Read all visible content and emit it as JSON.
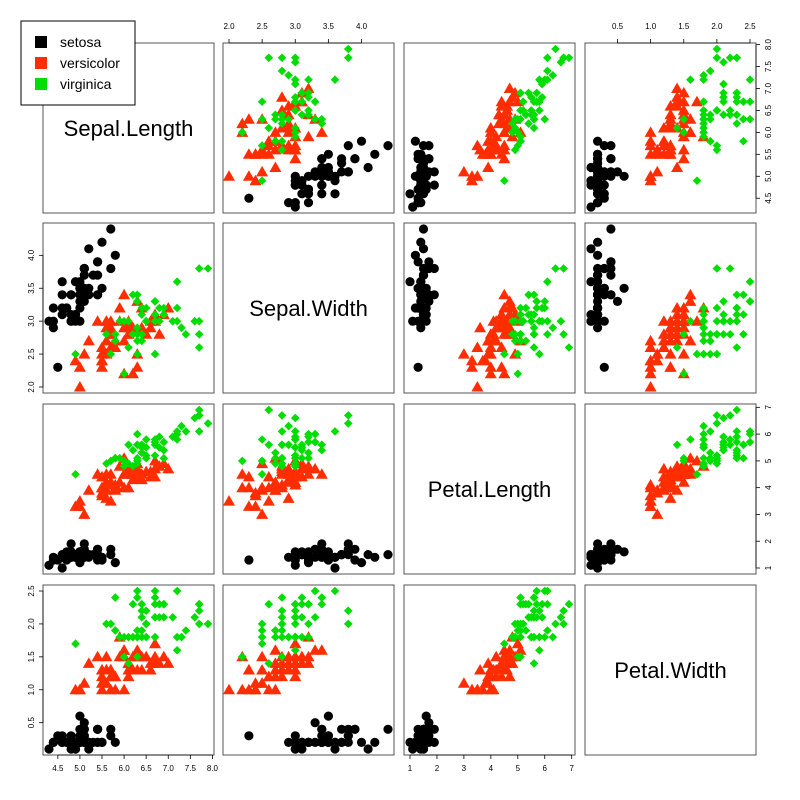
{
  "chart_data": {
    "type": "scatter",
    "variables": [
      "Sepal.Length",
      "Sepal.Width",
      "Petal.Length",
      "Petal.Width"
    ],
    "ranges": [
      [
        4.3,
        7.9
      ],
      [
        2.0,
        4.4
      ],
      [
        1.0,
        6.9
      ],
      [
        0.1,
        2.5
      ]
    ],
    "ticks": [
      [
        "4.5",
        "5.0",
        "5.5",
        "6.0",
        "6.5",
        "7.0",
        "7.5",
        "8.0"
      ],
      [
        "2.0",
        "2.5",
        "3.0",
        "3.5",
        "4.0"
      ],
      [
        "1",
        "2",
        "3",
        "4",
        "5",
        "6",
        "7"
      ],
      [
        "0.5",
        "1.0",
        "1.5",
        "2.0",
        "2.5"
      ]
    ],
    "legend": {
      "position": "top-left",
      "entries": [
        {
          "name": "setosa",
          "color": "#000000"
        },
        {
          "name": "versicolor",
          "color": "#ff2d00"
        },
        {
          "name": "virginica",
          "color": "#00dd00"
        }
      ]
    },
    "grid": false,
    "series": [
      {
        "name": "setosa",
        "color": "#000000",
        "marker": "circle",
        "points": [
          [
            5.1,
            3.5,
            1.4,
            0.2
          ],
          [
            4.9,
            3.0,
            1.4,
            0.2
          ],
          [
            4.7,
            3.2,
            1.3,
            0.2
          ],
          [
            4.6,
            3.1,
            1.5,
            0.2
          ],
          [
            5.0,
            3.6,
            1.4,
            0.2
          ],
          [
            5.4,
            3.9,
            1.7,
            0.4
          ],
          [
            4.6,
            3.4,
            1.4,
            0.3
          ],
          [
            5.0,
            3.4,
            1.5,
            0.2
          ],
          [
            4.4,
            2.9,
            1.4,
            0.2
          ],
          [
            4.9,
            3.1,
            1.5,
            0.1
          ],
          [
            5.4,
            3.7,
            1.5,
            0.2
          ],
          [
            4.8,
            3.4,
            1.6,
            0.2
          ],
          [
            4.8,
            3.0,
            1.4,
            0.1
          ],
          [
            4.3,
            3.0,
            1.1,
            0.1
          ],
          [
            5.8,
            4.0,
            1.2,
            0.2
          ],
          [
            5.7,
            4.4,
            1.5,
            0.4
          ],
          [
            5.4,
            3.9,
            1.3,
            0.4
          ],
          [
            5.1,
            3.5,
            1.4,
            0.3
          ],
          [
            5.7,
            3.8,
            1.7,
            0.3
          ],
          [
            5.1,
            3.8,
            1.5,
            0.3
          ],
          [
            5.4,
            3.4,
            1.7,
            0.2
          ],
          [
            5.1,
            3.7,
            1.5,
            0.4
          ],
          [
            4.6,
            3.6,
            1.0,
            0.2
          ],
          [
            5.1,
            3.3,
            1.7,
            0.5
          ],
          [
            4.8,
            3.4,
            1.9,
            0.2
          ],
          [
            5.0,
            3.0,
            1.6,
            0.2
          ],
          [
            5.0,
            3.4,
            1.6,
            0.4
          ],
          [
            5.2,
            3.5,
            1.5,
            0.2
          ],
          [
            5.2,
            3.4,
            1.4,
            0.2
          ],
          [
            4.7,
            3.2,
            1.6,
            0.2
          ],
          [
            4.8,
            3.1,
            1.6,
            0.2
          ],
          [
            5.4,
            3.4,
            1.5,
            0.4
          ],
          [
            5.2,
            4.1,
            1.5,
            0.1
          ],
          [
            5.5,
            4.2,
            1.4,
            0.2
          ],
          [
            4.9,
            3.1,
            1.5,
            0.2
          ],
          [
            5.0,
            3.2,
            1.2,
            0.2
          ],
          [
            5.5,
            3.5,
            1.3,
            0.2
          ],
          [
            4.9,
            3.6,
            1.4,
            0.1
          ],
          [
            4.4,
            3.0,
            1.3,
            0.2
          ],
          [
            5.1,
            3.4,
            1.5,
            0.2
          ],
          [
            5.0,
            3.5,
            1.3,
            0.3
          ],
          [
            4.5,
            2.3,
            1.3,
            0.3
          ],
          [
            4.4,
            3.2,
            1.3,
            0.2
          ],
          [
            5.0,
            3.5,
            1.6,
            0.6
          ],
          [
            5.1,
            3.8,
            1.9,
            0.4
          ],
          [
            4.8,
            3.0,
            1.4,
            0.3
          ],
          [
            5.1,
            3.8,
            1.6,
            0.2
          ],
          [
            4.6,
            3.2,
            1.4,
            0.2
          ],
          [
            5.3,
            3.7,
            1.5,
            0.2
          ],
          [
            5.0,
            3.3,
            1.4,
            0.2
          ]
        ]
      },
      {
        "name": "versicolor",
        "color": "#ff2d00",
        "marker": "triangle",
        "points": [
          [
            7.0,
            3.2,
            4.7,
            1.4
          ],
          [
            6.4,
            3.2,
            4.5,
            1.5
          ],
          [
            6.9,
            3.1,
            4.9,
            1.5
          ],
          [
            5.5,
            2.3,
            4.0,
            1.3
          ],
          [
            6.5,
            2.8,
            4.6,
            1.5
          ],
          [
            5.7,
            2.8,
            4.5,
            1.3
          ],
          [
            6.3,
            3.3,
            4.7,
            1.6
          ],
          [
            4.9,
            2.4,
            3.3,
            1.0
          ],
          [
            6.6,
            2.9,
            4.6,
            1.3
          ],
          [
            5.2,
            2.7,
            3.9,
            1.4
          ],
          [
            5.0,
            2.0,
            3.5,
            1.0
          ],
          [
            5.9,
            3.0,
            4.2,
            1.5
          ],
          [
            6.0,
            2.2,
            4.0,
            1.0
          ],
          [
            6.1,
            2.9,
            4.7,
            1.4
          ],
          [
            5.6,
            2.9,
            3.6,
            1.3
          ],
          [
            6.7,
            3.1,
            4.4,
            1.4
          ],
          [
            5.6,
            3.0,
            4.5,
            1.5
          ],
          [
            5.8,
            2.7,
            4.1,
            1.0
          ],
          [
            6.2,
            2.2,
            4.5,
            1.5
          ],
          [
            5.6,
            2.5,
            3.9,
            1.1
          ],
          [
            5.9,
            3.2,
            4.8,
            1.8
          ],
          [
            6.1,
            2.8,
            4.0,
            1.3
          ],
          [
            6.3,
            2.5,
            4.9,
            1.5
          ],
          [
            6.1,
            2.8,
            4.7,
            1.2
          ],
          [
            6.4,
            2.9,
            4.3,
            1.3
          ],
          [
            6.6,
            3.0,
            4.4,
            1.4
          ],
          [
            6.8,
            2.8,
            4.8,
            1.4
          ],
          [
            6.7,
            3.0,
            5.0,
            1.7
          ],
          [
            6.0,
            2.9,
            4.5,
            1.5
          ],
          [
            5.7,
            2.6,
            3.5,
            1.0
          ],
          [
            5.5,
            2.4,
            3.8,
            1.1
          ],
          [
            5.5,
            2.4,
            3.7,
            1.0
          ],
          [
            5.8,
            2.7,
            3.9,
            1.2
          ],
          [
            6.0,
            2.7,
            5.1,
            1.6
          ],
          [
            5.4,
            3.0,
            4.5,
            1.5
          ],
          [
            6.0,
            3.4,
            4.5,
            1.6
          ],
          [
            6.7,
            3.1,
            4.7,
            1.5
          ],
          [
            6.3,
            2.3,
            4.4,
            1.3
          ],
          [
            5.6,
            3.0,
            4.1,
            1.3
          ],
          [
            5.5,
            2.5,
            4.0,
            1.3
          ],
          [
            5.5,
            2.6,
            4.4,
            1.2
          ],
          [
            6.1,
            3.0,
            4.6,
            1.4
          ],
          [
            5.8,
            2.6,
            4.0,
            1.2
          ],
          [
            5.0,
            2.3,
            3.3,
            1.0
          ],
          [
            5.6,
            2.7,
            4.2,
            1.3
          ],
          [
            5.7,
            3.0,
            4.2,
            1.2
          ],
          [
            5.7,
            2.9,
            4.2,
            1.3
          ],
          [
            6.2,
            2.9,
            4.3,
            1.3
          ],
          [
            5.1,
            2.5,
            3.0,
            1.1
          ],
          [
            5.7,
            2.8,
            4.1,
            1.3
          ]
        ]
      },
      {
        "name": "virginica",
        "color": "#00dd00",
        "marker": "diamond",
        "points": [
          [
            6.3,
            3.3,
            6.0,
            2.5
          ],
          [
            5.8,
            2.7,
            5.1,
            1.9
          ],
          [
            7.1,
            3.0,
            5.9,
            2.1
          ],
          [
            6.3,
            2.9,
            5.6,
            1.8
          ],
          [
            6.5,
            3.0,
            5.8,
            2.2
          ],
          [
            7.6,
            3.0,
            6.6,
            2.1
          ],
          [
            4.9,
            2.5,
            4.5,
            1.7
          ],
          [
            7.3,
            2.9,
            6.3,
            1.8
          ],
          [
            6.7,
            2.5,
            5.8,
            1.8
          ],
          [
            7.2,
            3.6,
            6.1,
            2.5
          ],
          [
            6.5,
            3.2,
            5.1,
            2.0
          ],
          [
            6.4,
            2.7,
            5.3,
            1.9
          ],
          [
            6.8,
            3.0,
            5.5,
            2.1
          ],
          [
            5.7,
            2.5,
            5.0,
            2.0
          ],
          [
            5.8,
            2.8,
            5.1,
            2.4
          ],
          [
            6.4,
            3.2,
            5.3,
            2.3
          ],
          [
            6.5,
            3.0,
            5.5,
            1.8
          ],
          [
            7.7,
            3.8,
            6.7,
            2.2
          ],
          [
            7.7,
            2.6,
            6.9,
            2.3
          ],
          [
            6.0,
            2.2,
            5.0,
            1.5
          ],
          [
            6.9,
            3.2,
            5.7,
            2.3
          ],
          [
            5.6,
            2.8,
            4.9,
            2.0
          ],
          [
            7.7,
            2.8,
            6.7,
            2.0
          ],
          [
            6.3,
            2.7,
            4.9,
            1.8
          ],
          [
            6.7,
            3.3,
            5.7,
            2.1
          ],
          [
            7.2,
            3.2,
            6.0,
            1.8
          ],
          [
            6.2,
            2.8,
            4.8,
            1.8
          ],
          [
            6.1,
            3.0,
            4.9,
            1.8
          ],
          [
            6.4,
            2.8,
            5.6,
            2.1
          ],
          [
            7.2,
            3.0,
            5.8,
            1.6
          ],
          [
            7.4,
            2.8,
            6.1,
            1.9
          ],
          [
            7.9,
            3.8,
            6.4,
            2.0
          ],
          [
            6.4,
            2.8,
            5.6,
            2.2
          ],
          [
            6.3,
            2.8,
            5.1,
            1.5
          ],
          [
            6.1,
            2.6,
            5.6,
            1.4
          ],
          [
            7.7,
            3.0,
            6.1,
            2.3
          ],
          [
            6.3,
            3.4,
            5.6,
            2.4
          ],
          [
            6.4,
            3.1,
            5.5,
            1.8
          ],
          [
            6.0,
            3.0,
            4.8,
            1.8
          ],
          [
            6.9,
            3.1,
            5.4,
            2.1
          ],
          [
            6.7,
            3.1,
            5.6,
            2.4
          ],
          [
            6.9,
            3.1,
            5.1,
            2.3
          ],
          [
            5.8,
            2.7,
            5.1,
            1.9
          ],
          [
            6.8,
            3.2,
            5.9,
            2.3
          ],
          [
            6.7,
            3.3,
            5.7,
            2.5
          ],
          [
            6.7,
            3.0,
            5.2,
            2.3
          ],
          [
            6.3,
            2.5,
            5.0,
            1.9
          ],
          [
            6.5,
            3.0,
            5.2,
            2.0
          ],
          [
            6.2,
            3.4,
            5.4,
            2.3
          ],
          [
            5.9,
            3.0,
            5.1,
            1.8
          ]
        ]
      }
    ]
  }
}
